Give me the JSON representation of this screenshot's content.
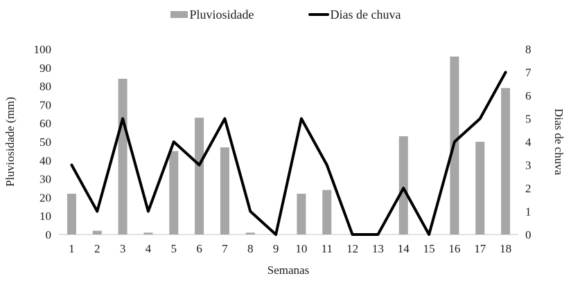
{
  "legend": {
    "pluviosidade_label": "Pluviosidade",
    "dias_label": "Dias de chuva"
  },
  "chart_data": {
    "type": "combo-bar-line",
    "title": "",
    "categories": [
      "1",
      "2",
      "3",
      "4",
      "5",
      "6",
      "7",
      "8",
      "9",
      "10",
      "11",
      "12",
      "13",
      "14",
      "15",
      "16",
      "17",
      "18"
    ],
    "series": [
      {
        "name": "Pluviosidade",
        "type": "bar",
        "axis": "left",
        "color": "#a6a6a6",
        "values": [
          22,
          2,
          84,
          1,
          45,
          63,
          47,
          1,
          0,
          22,
          24,
          0,
          0,
          53,
          0,
          96,
          50,
          79
        ]
      },
      {
        "name": "Dias de chuva",
        "type": "line",
        "axis": "right",
        "color": "#000000",
        "values": [
          3,
          1,
          5,
          1,
          4,
          3,
          5,
          1,
          0,
          5,
          3,
          0,
          0,
          2,
          0,
          4,
          5,
          7
        ]
      }
    ],
    "xlabel": "Semanas",
    "left_axis": {
      "label": "Pluviosidade  (mm)",
      "min": 0,
      "max": 100,
      "step": 10
    },
    "right_axis": {
      "label": "Dias de chuva",
      "min": 0,
      "max": 8,
      "step": 1
    },
    "legend_position": "top",
    "grid": false,
    "baseline_color": "#d9d9d9"
  }
}
